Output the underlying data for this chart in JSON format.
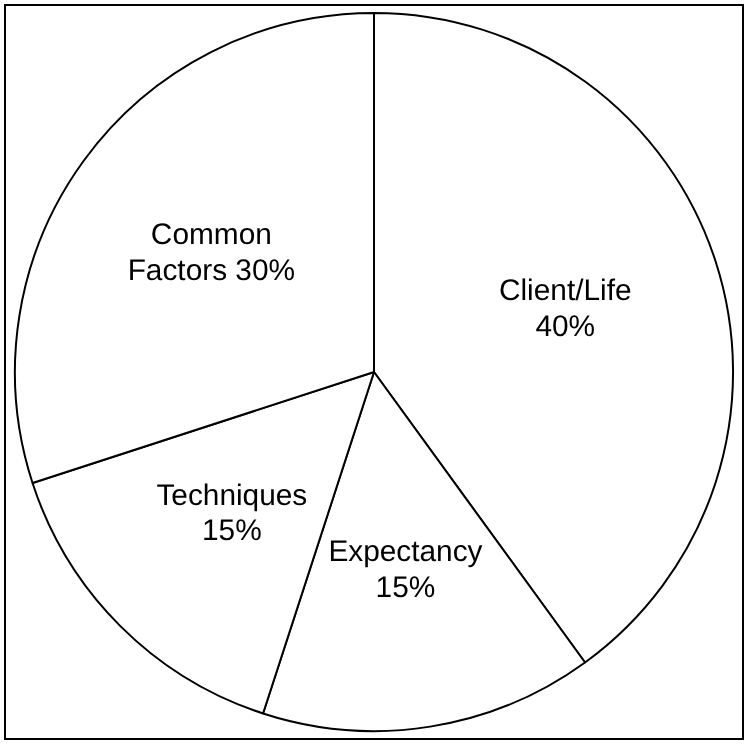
{
  "chart_data": {
    "type": "pie",
    "categories": [
      "Client/Life",
      "Expectancy",
      "Techniques",
      "Common Factors"
    ],
    "values": [
      40,
      15,
      15,
      30
    ],
    "value_labels": [
      "40%",
      "15%",
      "15%",
      "30%"
    ],
    "colors": [
      "#ffffff",
      "#ffffff",
      "#ffffff",
      "#ffffff"
    ],
    "legend": false
  }
}
